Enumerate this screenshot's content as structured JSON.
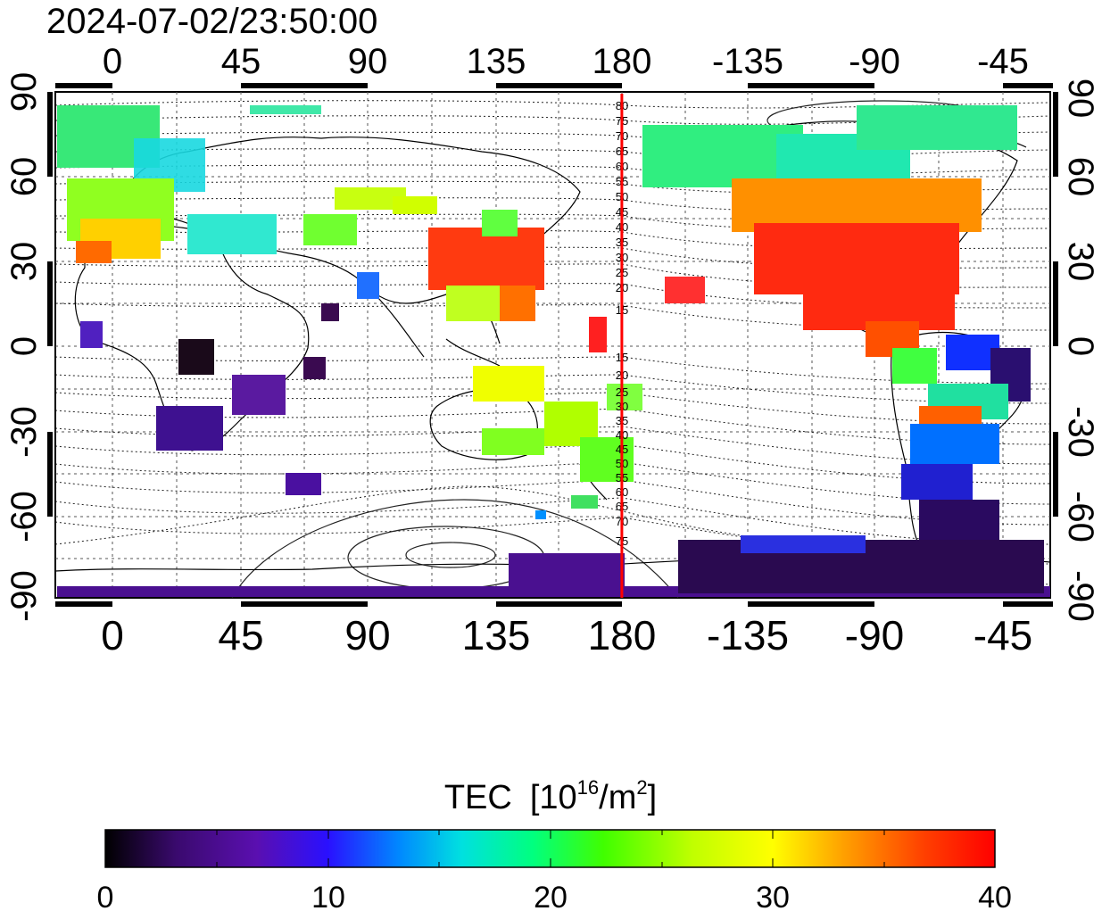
{
  "header": {
    "timestamp": "2024-07-02/23:50:00"
  },
  "map": {
    "top_lon_labels": [
      "0",
      "45",
      "90",
      "135",
      "180",
      "-135",
      "-90",
      "-45"
    ],
    "bottom_lon_labels": [
      "0",
      "45",
      "90",
      "135",
      "180",
      "-135",
      "-90",
      "-45"
    ],
    "left_lat_labels": [
      "90",
      "60",
      "30",
      "0",
      "-30",
      "-60",
      "-90"
    ],
    "right_lat_labels": [
      "90",
      "60",
      "30",
      "0",
      "-30",
      "-60",
      "-90"
    ],
    "meridian_lon": 183,
    "meridian_color": "#ff0000",
    "contour_labels": [
      "80",
      "75",
      "70",
      "65",
      "60",
      "55",
      "50",
      "45",
      "40",
      "35",
      "30",
      "25",
      "20",
      "15",
      "15",
      "20",
      "25",
      "30",
      "35",
      "40",
      "45",
      "50",
      "55",
      "60",
      "65",
      "70",
      "75"
    ]
  },
  "colorbar": {
    "title": "TEC",
    "unit_base": "[10",
    "unit_exp": "16",
    "unit_mid": "/m",
    "unit_exp2": "2",
    "unit_end": "]",
    "tick_labels": [
      "0",
      "10",
      "20",
      "30",
      "40"
    ],
    "min": 0,
    "max": 40,
    "stops": [
      "#000000",
      "#3a0a6e",
      "#5a0fb0",
      "#2a10ff",
      "#0088ff",
      "#00e0e0",
      "#00ff80",
      "#40ff00",
      "#c0ff00",
      "#ffff00",
      "#ffa000",
      "#ff4000",
      "#ff0000"
    ]
  }
}
